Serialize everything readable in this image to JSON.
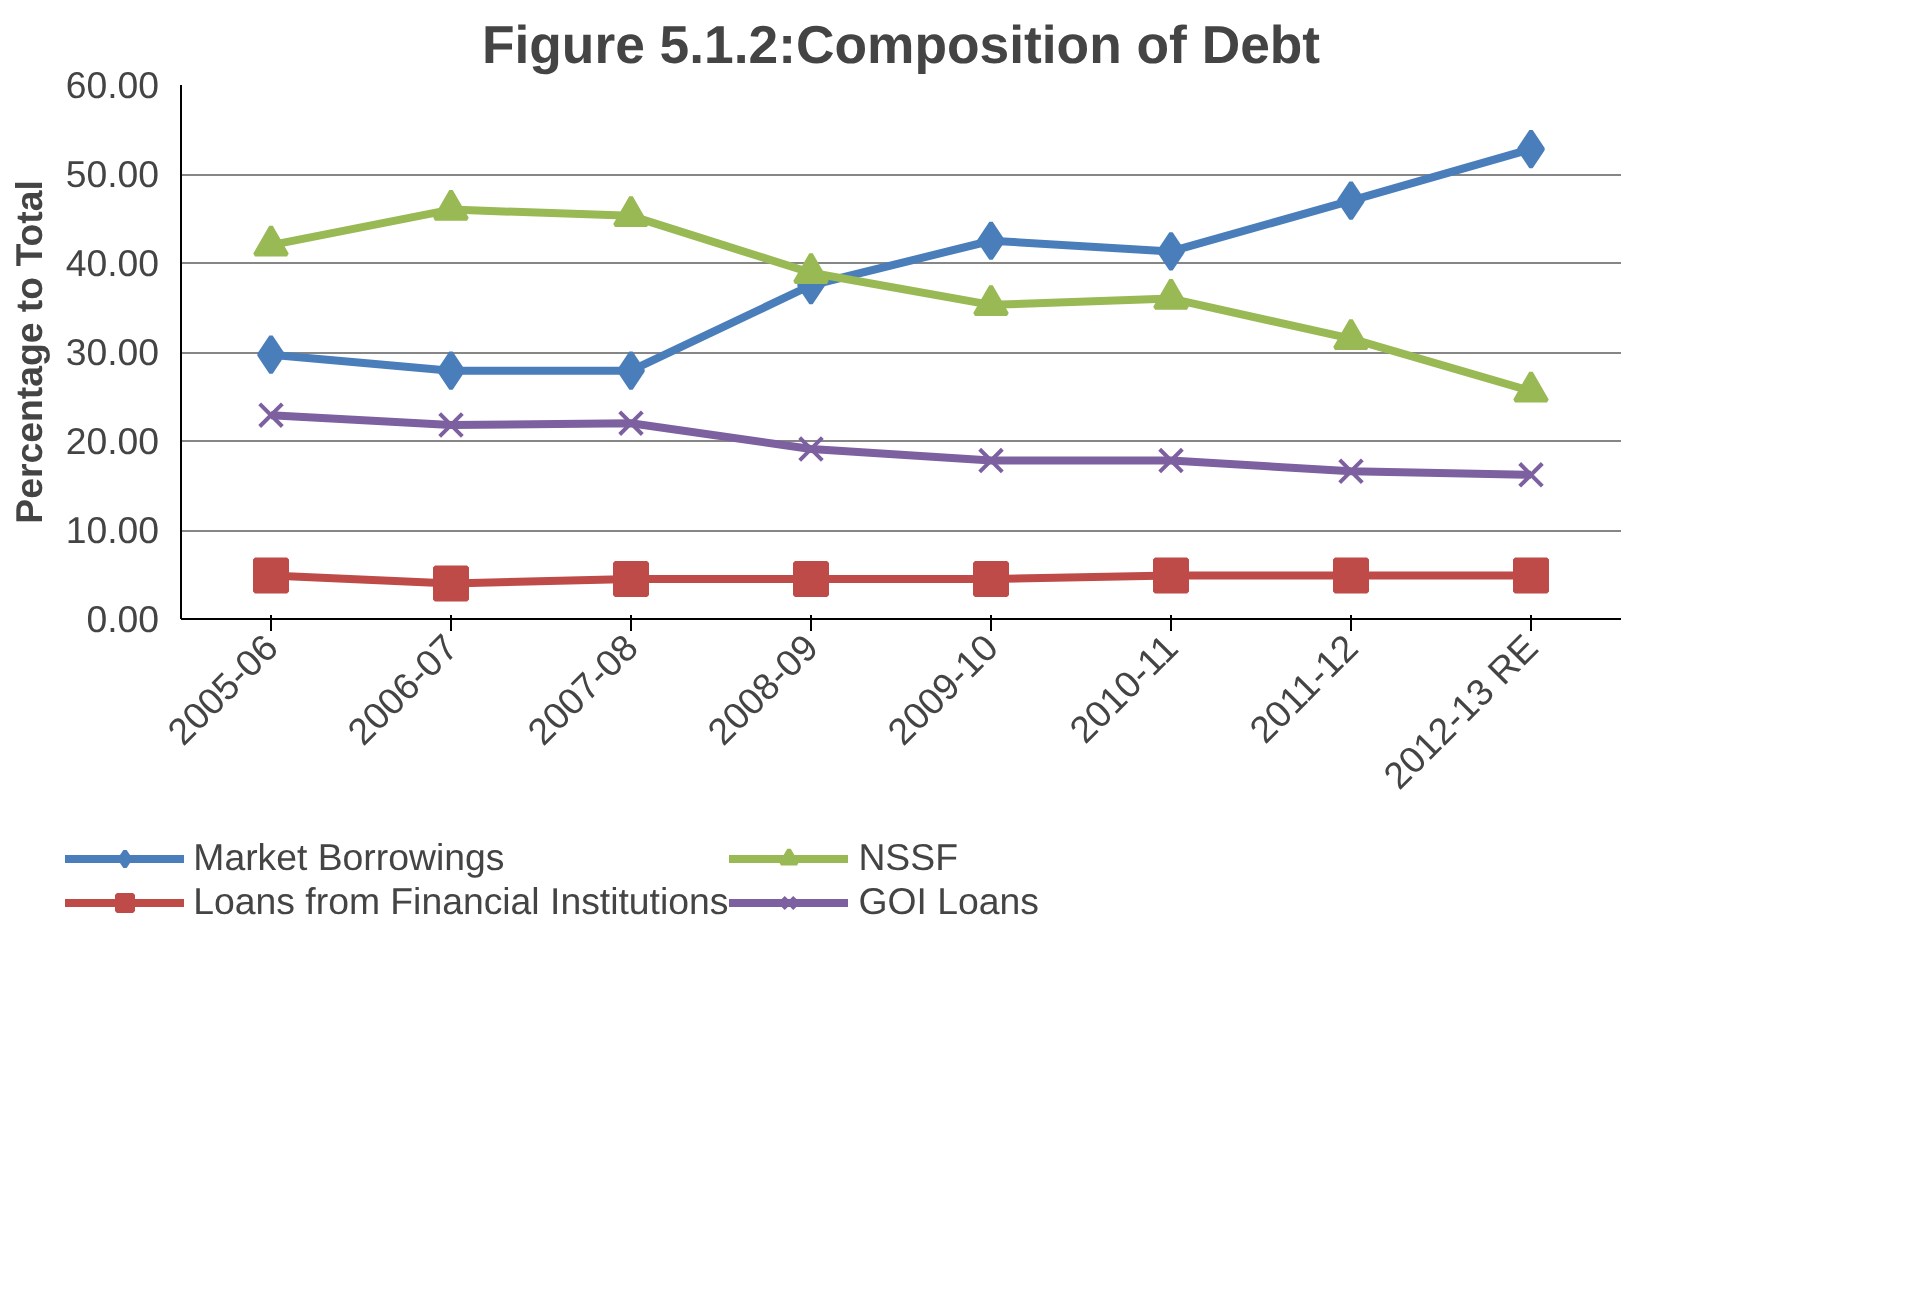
{
  "chart_data": {
    "type": "line",
    "title": "Figure 5.1.2:Composition of Debt",
    "ylabel": "Percentage to Total",
    "categories": [
      "2005-06",
      "2006-07",
      "2007-08",
      "2008-09",
      "2009-10",
      "2010-11",
      "2011-12",
      "2012-13 RE"
    ],
    "series": [
      {
        "name": "Market Borrowings",
        "color": "#4a7ebb",
        "marker": "diamond",
        "values": [
          29.7,
          27.9,
          27.9,
          37.5,
          42.5,
          41.3,
          47.0,
          52.8
        ]
      },
      {
        "name": "Loans from Financial Institutions",
        "color": "#be4b48",
        "marker": "square",
        "values": [
          4.9,
          4.0,
          4.5,
          4.5,
          4.5,
          4.9,
          4.9,
          4.9
        ]
      },
      {
        "name": "NSSF",
        "color": "#98b954",
        "marker": "triangle",
        "values": [
          42.0,
          46.0,
          45.3,
          38.9,
          35.3,
          36.0,
          31.5,
          25.6
        ]
      },
      {
        "name": "GOI Loans",
        "color": "#7d60a0",
        "marker": "cross",
        "values": [
          22.9,
          21.8,
          22.0,
          19.1,
          17.8,
          17.8,
          16.6,
          16.2
        ]
      }
    ],
    "ylim": [
      0,
      60
    ],
    "yticks": [
      {
        "value": 0,
        "label": "0.00"
      },
      {
        "value": 10,
        "label": "10.00"
      },
      {
        "value": 20,
        "label": "20.00"
      },
      {
        "value": 30,
        "label": "30.00"
      },
      {
        "value": 40,
        "label": "40.00"
      },
      {
        "value": 50,
        "label": "50.00"
      },
      {
        "value": 60,
        "label": "60.00"
      }
    ],
    "grid": "y",
    "legend": "bottom",
    "line_style": "solid"
  }
}
